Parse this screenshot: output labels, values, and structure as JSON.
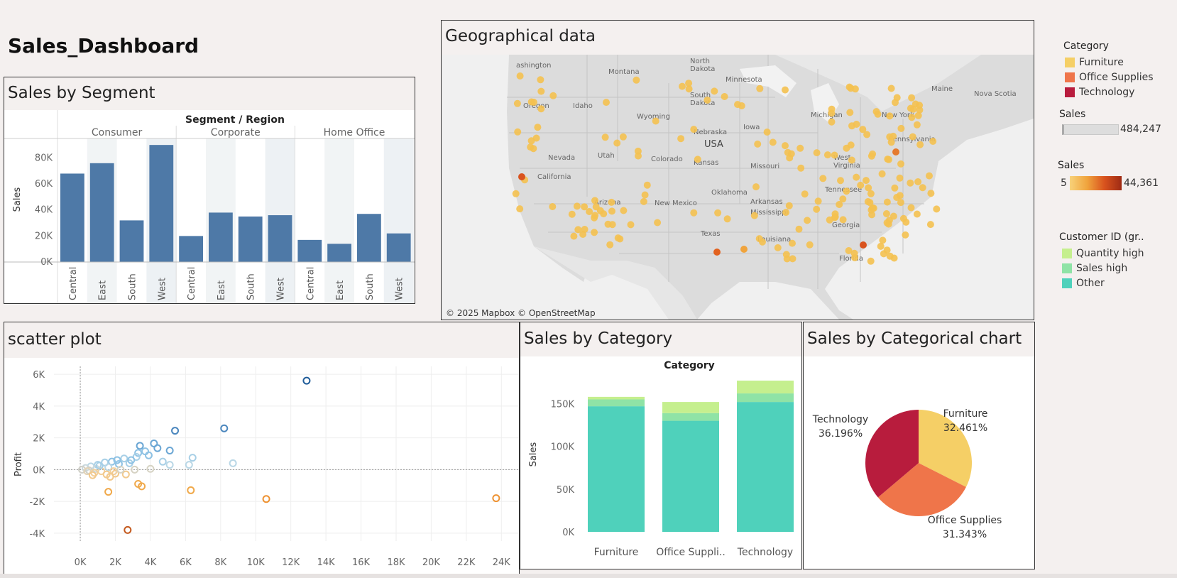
{
  "dashboard": {
    "title": "Sales_Dashboard"
  },
  "panels": {
    "segment": "Sales by Segment",
    "geo": "Geographical data",
    "scatter": "scatter plot",
    "category": "Sales by Category",
    "pie": "Sales by Categorical chart"
  },
  "map": {
    "attribution": "© 2025 Mapbox © OpenStreetMap",
    "labels": [
      "ashington",
      "Montana",
      "North\nDakota",
      "Minnesota",
      "Maine",
      "Nova Scotia",
      "Oregon",
      "Idaho",
      "Wyoming",
      "South\nDakota",
      "Michigan",
      "New York",
      "Nevada",
      "Utah",
      "Colorado",
      "Nebraska",
      "USA",
      "Iowa",
      "Pennsylvania",
      "California",
      "Kansas",
      "Missouri",
      "West\nVirginia",
      "Arizona",
      "New Mexico",
      "Oklahoma",
      "Arkansas",
      "Tennessee",
      "Mississippi",
      "Texas",
      "Georgia",
      "Louisiana",
      "Florida"
    ]
  },
  "legends": {
    "category": {
      "title": "Category",
      "items": [
        {
          "label": "Furniture",
          "color": "#f5cf66"
        },
        {
          "label": "Office Supplies",
          "color": "#ef754a"
        },
        {
          "label": "Technology",
          "color": "#b81c3d"
        }
      ]
    },
    "sales_size": {
      "title": "Sales",
      "max": "484,247"
    },
    "sales_color": {
      "title": "Sales",
      "min": "5",
      "max": "44,361"
    },
    "customer": {
      "title": "Customer ID (gr..",
      "items": [
        {
          "label": "Quantity high",
          "color": "#c5ef8e"
        },
        {
          "label": "Sales high",
          "color": "#8fe3a6"
        },
        {
          "label": "Other",
          "color": "#4fd1bb"
        }
      ]
    }
  },
  "chart_data": [
    {
      "type": "bar",
      "title": "Sales by Segment",
      "header": "Segment / Region",
      "ylabel": "Sales",
      "ylim": [
        0,
        95000
      ],
      "yticks": [
        0,
        20000,
        40000,
        60000,
        80000
      ],
      "ytick_labels": [
        "0K",
        "20K",
        "40K",
        "60K",
        "80K"
      ],
      "segments": [
        "Consumer",
        "Corporate",
        "Home Office"
      ],
      "categories": [
        "Central",
        "East",
        "South",
        "West"
      ],
      "series": [
        {
          "name": "Consumer",
          "values": [
            68000,
            76000,
            32000,
            90000
          ]
        },
        {
          "name": "Corporate",
          "values": [
            20000,
            38000,
            35000,
            36000
          ]
        },
        {
          "name": "Home Office",
          "values": [
            17000,
            14000,
            37000,
            22000
          ]
        }
      ],
      "color": "#4e79a7"
    },
    {
      "type": "scatter",
      "title": "scatter plot",
      "ylabel": "Profit",
      "xlim": [
        -1500,
        25000
      ],
      "ylim": [
        -4500,
        6500
      ],
      "xticks": [
        0,
        2000,
        4000,
        6000,
        8000,
        10000,
        12000,
        14000,
        16000,
        18000,
        20000,
        22000,
        24000
      ],
      "xtick_labels": [
        "0K",
        "2K",
        "4K",
        "6K",
        "8K",
        "10K",
        "12K",
        "14K",
        "16K",
        "18K",
        "20K",
        "22K",
        "24K"
      ],
      "yticks": [
        -4000,
        -2000,
        0,
        2000,
        4000,
        6000
      ],
      "ytick_labels": [
        "-4K",
        "-2K",
        "0K",
        "2K",
        "4K",
        "6K"
      ],
      "points": [
        {
          "x": 12900,
          "y": 5600,
          "c": "#1f5c99"
        },
        {
          "x": 8200,
          "y": 2600,
          "c": "#4a86bd"
        },
        {
          "x": 5400,
          "y": 2450,
          "c": "#4a86bd"
        },
        {
          "x": 4200,
          "y": 1650,
          "c": "#6aa6d4"
        },
        {
          "x": 3400,
          "y": 1500,
          "c": "#6aa6d4"
        },
        {
          "x": 4400,
          "y": 1350,
          "c": "#6aa6d4"
        },
        {
          "x": 5100,
          "y": 1200,
          "c": "#6aa6d4"
        },
        {
          "x": 3700,
          "y": 1150,
          "c": "#8ec2e4"
        },
        {
          "x": 3300,
          "y": 1050,
          "c": "#8ec2e4"
        },
        {
          "x": 3900,
          "y": 900,
          "c": "#8ec2e4"
        },
        {
          "x": 6400,
          "y": 750,
          "c": "#a7cfe6"
        },
        {
          "x": 3200,
          "y": 800,
          "c": "#a7cfe6"
        },
        {
          "x": 2500,
          "y": 700,
          "c": "#a7cfe6"
        },
        {
          "x": 4700,
          "y": 500,
          "c": "#a7cfe6"
        },
        {
          "x": 8700,
          "y": 400,
          "c": "#b9d7e6"
        },
        {
          "x": 5100,
          "y": 300,
          "c": "#b9d7e6"
        },
        {
          "x": 1800,
          "y": 500,
          "c": "#8ec2e4"
        },
        {
          "x": 2200,
          "y": 350,
          "c": "#8ec2e4"
        },
        {
          "x": 1400,
          "y": 450,
          "c": "#a7cfe6"
        },
        {
          "x": 1000,
          "y": 300,
          "c": "#a7cfe6"
        },
        {
          "x": 600,
          "y": 200,
          "c": "#b9d7e6"
        },
        {
          "x": 300,
          "y": 100,
          "c": "#c9d8dd"
        },
        {
          "x": 100,
          "y": 0,
          "c": "#d0d0c8"
        },
        {
          "x": 500,
          "y": -50,
          "c": "#d0d0c8"
        },
        {
          "x": 900,
          "y": 50,
          "c": "#c9d8dd"
        },
        {
          "x": 1600,
          "y": 150,
          "c": "#b9d7e6"
        },
        {
          "x": 2800,
          "y": 400,
          "c": "#a7cfe6"
        },
        {
          "x": 6200,
          "y": 300,
          "c": "#b9d7e6"
        },
        {
          "x": 3100,
          "y": 0,
          "c": "#d6d3c4"
        },
        {
          "x": 4000,
          "y": 50,
          "c": "#d6d3c4"
        },
        {
          "x": 1200,
          "y": -100,
          "c": "#f2cf9a"
        },
        {
          "x": 2000,
          "y": -250,
          "c": "#f2c98c"
        },
        {
          "x": 2600,
          "y": -300,
          "c": "#f2c98c"
        },
        {
          "x": 1500,
          "y": -300,
          "c": "#f2c98c"
        },
        {
          "x": 3300,
          "y": -900,
          "c": "#f0a94b"
        },
        {
          "x": 3500,
          "y": -1050,
          "c": "#f0a94b"
        },
        {
          "x": 1600,
          "y": -1400,
          "c": "#f0a94b"
        },
        {
          "x": 6300,
          "y": -1300,
          "c": "#f0a94b"
        },
        {
          "x": 10600,
          "y": -1850,
          "c": "#ee9232"
        },
        {
          "x": 23700,
          "y": -1800,
          "c": "#ee9232"
        },
        {
          "x": 2700,
          "y": -3800,
          "c": "#c45a1f"
        },
        {
          "x": 800,
          "y": -200,
          "c": "#f2cf9a"
        },
        {
          "x": 400,
          "y": -100,
          "c": "#e3d3b6"
        },
        {
          "x": 1900,
          "y": -100,
          "c": "#f2cf9a"
        },
        {
          "x": 2300,
          "y": 0,
          "c": "#d6d3c4"
        },
        {
          "x": 1100,
          "y": 250,
          "c": "#a7cfe6"
        },
        {
          "x": 2100,
          "y": 600,
          "c": "#8ec2e4"
        },
        {
          "x": 2900,
          "y": 600,
          "c": "#8ec2e4"
        },
        {
          "x": 700,
          "y": -350,
          "c": "#f2c98c"
        },
        {
          "x": 1700,
          "y": -450,
          "c": "#f2c98c"
        }
      ]
    },
    {
      "type": "bar",
      "title": "Sales by Category",
      "header": "Category",
      "ylabel": "Sales",
      "ylim": [
        0,
        182000
      ],
      "yticks": [
        0,
        50000,
        100000,
        150000
      ],
      "ytick_labels": [
        "0K",
        "50K",
        "100K",
        "150K"
      ],
      "categories": [
        "Furniture",
        "Office Suppli..",
        "Technology"
      ],
      "series": [
        {
          "name": "Other",
          "color": "#4fd1bb",
          "values": [
            147000,
            130000,
            152000
          ]
        },
        {
          "name": "Sales high",
          "color": "#8fe3a6",
          "values": [
            8000,
            9000,
            10000
          ]
        },
        {
          "name": "Quantity high",
          "color": "#c5ef8e",
          "values": [
            3000,
            13000,
            15000
          ]
        }
      ]
    },
    {
      "type": "pie",
      "title": "Sales by Categorical chart",
      "slices": [
        {
          "label": "Furniture",
          "value": 32.461,
          "pct": "32.461%",
          "color": "#f5cf66"
        },
        {
          "label": "Office Supplies",
          "value": 31.343,
          "pct": "31.343%",
          "color": "#ef754a"
        },
        {
          "label": "Technology",
          "value": 36.196,
          "pct": "36.196%",
          "color": "#b81c3d"
        }
      ]
    }
  ]
}
